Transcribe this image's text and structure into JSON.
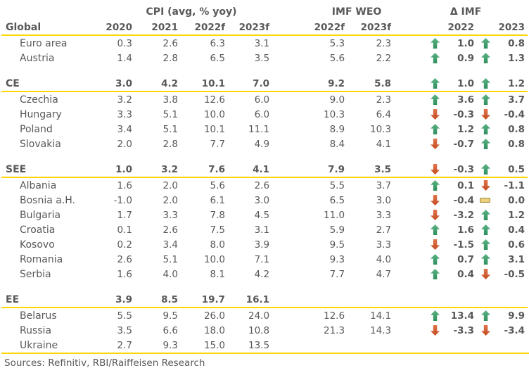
{
  "chart_data": {
    "type": "table",
    "column_groups": [
      {
        "label": "CPI (avg, % yoy)",
        "span": [
          "2020",
          "2021",
          "2022f",
          "2023f"
        ]
      },
      {
        "label": "IMF WEO",
        "span": [
          "2022f",
          "2023f"
        ]
      },
      {
        "label": "Δ IMF",
        "span": [
          "2022",
          "2023"
        ]
      }
    ],
    "corner_label": "Global",
    "rows": [
      {
        "kind": "country",
        "name": "Euro area",
        "cpi": [
          "0.3",
          "2.6",
          "6.3",
          "3.1"
        ],
        "imf": [
          "5.3",
          "2.3"
        ],
        "delta": [
          {
            "dir": "up",
            "val": "1.0"
          },
          {
            "dir": "up",
            "val": "0.8"
          }
        ]
      },
      {
        "kind": "country",
        "name": "Austria",
        "cpi": [
          "1.4",
          "2.8",
          "6.5",
          "3.5"
        ],
        "imf": [
          "5.6",
          "2.2"
        ],
        "delta": [
          {
            "dir": "up",
            "val": "0.9"
          },
          {
            "dir": "up",
            "val": "1.3"
          }
        ]
      },
      {
        "kind": "spacer"
      },
      {
        "kind": "aggregate",
        "name": "CE",
        "cpi": [
          "3.0",
          "4.2",
          "10.1",
          "7.0"
        ],
        "imf": [
          "9.2",
          "5.8"
        ],
        "delta": [
          {
            "dir": "up",
            "val": "1.0"
          },
          {
            "dir": "up",
            "val": "1.2"
          }
        ]
      },
      {
        "kind": "country",
        "name": "Czechia",
        "cpi": [
          "3.2",
          "3.8",
          "12.6",
          "6.0"
        ],
        "imf": [
          "9.0",
          "2.3"
        ],
        "delta": [
          {
            "dir": "up",
            "val": "3.6"
          },
          {
            "dir": "up",
            "val": "3.7"
          }
        ]
      },
      {
        "kind": "country",
        "name": "Hungary",
        "cpi": [
          "3.3",
          "5.1",
          "10.0",
          "6.0"
        ],
        "imf": [
          "10.3",
          "6.4"
        ],
        "delta": [
          {
            "dir": "down",
            "val": "-0.3"
          },
          {
            "dir": "down",
            "val": "-0.4"
          }
        ]
      },
      {
        "kind": "country",
        "name": "Poland",
        "cpi": [
          "3.4",
          "5.1",
          "10.1",
          "11.1"
        ],
        "imf": [
          "8.9",
          "10.3"
        ],
        "delta": [
          {
            "dir": "up",
            "val": "1.2"
          },
          {
            "dir": "up",
            "val": "0.8"
          }
        ]
      },
      {
        "kind": "country",
        "name": "Slovakia",
        "cpi": [
          "2.0",
          "2.8",
          "7.7",
          "4.9"
        ],
        "imf": [
          "8.4",
          "4.1"
        ],
        "delta": [
          {
            "dir": "down",
            "val": "-0.7"
          },
          {
            "dir": "up",
            "val": "0.8"
          }
        ]
      },
      {
        "kind": "spacer"
      },
      {
        "kind": "aggregate",
        "name": "SEE",
        "cpi": [
          "1.0",
          "3.2",
          "7.6",
          "4.1"
        ],
        "imf": [
          "7.9",
          "3.5"
        ],
        "delta": [
          {
            "dir": "down",
            "val": "-0.3"
          },
          {
            "dir": "up",
            "val": "0.5"
          }
        ]
      },
      {
        "kind": "country",
        "name": "Albania",
        "cpi": [
          "1.6",
          "2.0",
          "5.6",
          "2.6"
        ],
        "imf": [
          "5.5",
          "3.7"
        ],
        "delta": [
          {
            "dir": "up",
            "val": "0.1"
          },
          {
            "dir": "down",
            "val": "-1.1"
          }
        ]
      },
      {
        "kind": "country",
        "name": "Bosnia a.H.",
        "cpi": [
          "-1.0",
          "2.0",
          "6.1",
          "3.0"
        ],
        "imf": [
          "6.5",
          "3.0"
        ],
        "delta": [
          {
            "dir": "down",
            "val": "-0.4"
          },
          {
            "dir": "flat",
            "val": "0.0"
          }
        ]
      },
      {
        "kind": "country",
        "name": "Bulgaria",
        "cpi": [
          "1.7",
          "3.3",
          "7.8",
          "4.5"
        ],
        "imf": [
          "11.0",
          "3.3"
        ],
        "delta": [
          {
            "dir": "down",
            "val": "-3.2"
          },
          {
            "dir": "up",
            "val": "1.2"
          }
        ]
      },
      {
        "kind": "country",
        "name": "Croatia",
        "cpi": [
          "0.1",
          "2.6",
          "7.5",
          "3.1"
        ],
        "imf": [
          "5.9",
          "2.7"
        ],
        "delta": [
          {
            "dir": "up",
            "val": "1.6"
          },
          {
            "dir": "up",
            "val": "0.4"
          }
        ]
      },
      {
        "kind": "country",
        "name": "Kosovo",
        "cpi": [
          "0.2",
          "3.4",
          "8.0",
          "3.9"
        ],
        "imf": [
          "9.5",
          "3.3"
        ],
        "delta": [
          {
            "dir": "down",
            "val": "-1.5"
          },
          {
            "dir": "up",
            "val": "0.6"
          }
        ]
      },
      {
        "kind": "country",
        "name": "Romania",
        "cpi": [
          "2.6",
          "5.1",
          "10.0",
          "7.1"
        ],
        "imf": [
          "9.3",
          "4.0"
        ],
        "delta": [
          {
            "dir": "up",
            "val": "0.7"
          },
          {
            "dir": "up",
            "val": "3.1"
          }
        ]
      },
      {
        "kind": "country",
        "name": "Serbia",
        "cpi": [
          "1.6",
          "4.0",
          "8.1",
          "4.2"
        ],
        "imf": [
          "7.7",
          "4.7"
        ],
        "delta": [
          {
            "dir": "up",
            "val": "0.4"
          },
          {
            "dir": "down",
            "val": "-0.5"
          }
        ]
      },
      {
        "kind": "spacer"
      },
      {
        "kind": "aggregate",
        "name": "EE",
        "cpi": [
          "3.9",
          "8.5",
          "19.7",
          "16.1"
        ],
        "imf": [
          "",
          ""
        ],
        "delta": [
          null,
          null
        ]
      },
      {
        "kind": "country",
        "name": "Belarus",
        "cpi": [
          "5.5",
          "9.5",
          "26.0",
          "24.0"
        ],
        "imf": [
          "12.6",
          "14.1"
        ],
        "delta": [
          {
            "dir": "up",
            "val": "13.4"
          },
          {
            "dir": "up",
            "val": "9.9"
          }
        ]
      },
      {
        "kind": "country",
        "name": "Russia",
        "cpi": [
          "3.5",
          "6.6",
          "18.0",
          "10.8"
        ],
        "imf": [
          "21.3",
          "14.3"
        ],
        "delta": [
          {
            "dir": "down",
            "val": "-3.3"
          },
          {
            "dir": "down",
            "val": "-3.4"
          }
        ]
      },
      {
        "kind": "country",
        "name": "Ukraine",
        "cpi": [
          "2.7",
          "9.3",
          "15.0",
          "13.5"
        ],
        "imf": [
          "",
          ""
        ],
        "delta": [
          null,
          null
        ]
      }
    ],
    "footer": "Sources: Refinitiv, RBI/Raiffeisen Research"
  },
  "colors": {
    "text": "#595959",
    "accent_yellow": "#FFD500",
    "arrow_up": "#2E8F5D",
    "arrow_up_light": "#5CB384",
    "arrow_down": "#C24A1E",
    "arrow_down_light": "#E2754E",
    "flat_fill": "#ECD07A",
    "flat_border": "#9C8A45"
  }
}
